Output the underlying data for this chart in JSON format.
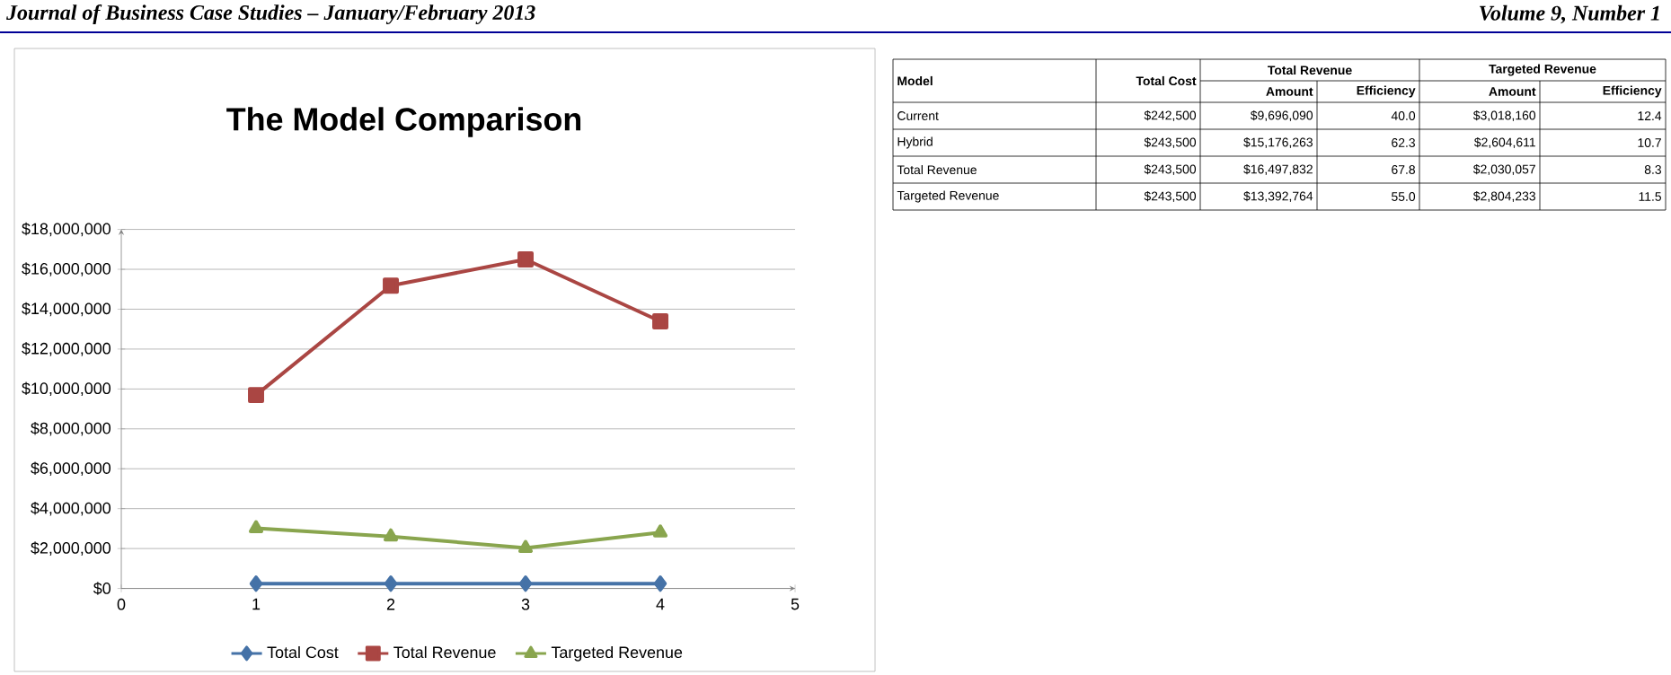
{
  "chart_data": [
    {
      "type": "line",
      "title": "The Model Comparison",
      "annotations": [
        "Journal of Business Case Studies – January/February 2013",
        "Volume 9, Number 1"
      ],
      "x": [
        1,
        2,
        3,
        4
      ],
      "series": [
        {
          "name": "Total Cost",
          "color": "#4572a7",
          "marker": "diamond",
          "values": [
            242500,
            243500,
            243500,
            243500
          ]
        },
        {
          "name": "Total Revenue",
          "color": "#aa4643",
          "marker": "square",
          "values": [
            9696090,
            15176263,
            16497832,
            13392764
          ]
        },
        {
          "name": "Targeted Revenue",
          "color": "#89a54e",
          "marker": "triangle",
          "values": [
            3018160,
            2604611,
            2030057,
            2804233
          ]
        }
      ],
      "xlim": [
        0,
        5
      ],
      "xticks": [
        0,
        1,
        2,
        3,
        4,
        5
      ],
      "ylim": [
        0,
        18000000
      ],
      "yticks": [
        {
          "value": 0,
          "label": "$0"
        },
        {
          "value": 2000000,
          "label": "$2,000,000"
        },
        {
          "value": 4000000,
          "label": "$4,000,000"
        },
        {
          "value": 6000000,
          "label": "$6,000,000"
        },
        {
          "value": 8000000,
          "label": "$8,000,000"
        },
        {
          "value": 10000000,
          "label": "$10,000,000"
        },
        {
          "value": 12000000,
          "label": "$12,000,000"
        },
        {
          "value": 14000000,
          "label": "$14,000,000"
        },
        {
          "value": 16000000,
          "label": "$16,000,000"
        },
        {
          "value": 18000000,
          "label": "$18,000,000"
        }
      ],
      "grid": "y",
      "legend": "bottom"
    },
    {
      "type": "other",
      "annotations": [
        "Model",
        "Total Cost",
        "Total Revenue",
        "Targeted Revenue",
        "Amount",
        "Efficiency",
        "Amount",
        "Efficiency",
        "Current",
        "$242,500",
        "$9,696,090",
        "40.0",
        "$3,018,160",
        "12.4",
        "Hybrid",
        "$243,500",
        "$15,176,263",
        "62.3",
        "$2,604,611",
        "10.7",
        "Total Revenue",
        "$243,500",
        "$16,497,832",
        "67.8",
        "$2,030,057",
        "8.3",
        "Targeted Revenue",
        "$243,500",
        "$13,392,764",
        "55.0",
        "$2,804,233",
        "11.5"
      ]
    }
  ]
}
